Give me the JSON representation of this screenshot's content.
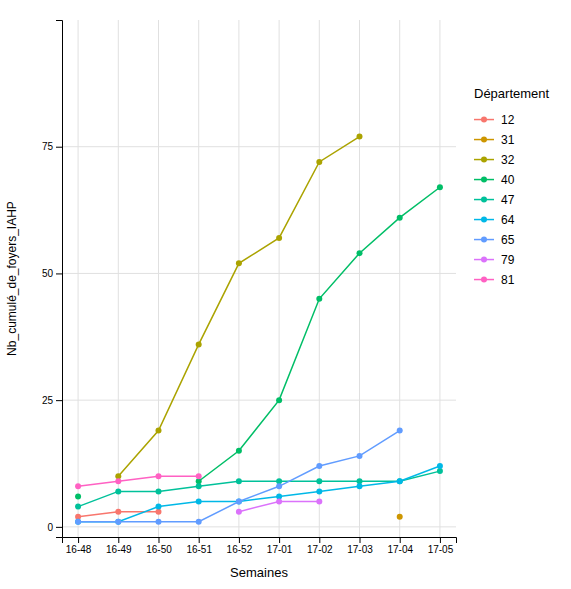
{
  "chart_data": {
    "type": "line",
    "xlabel": "Semaines",
    "ylabel": "Nb_cumulé_de_foyers_IAHP",
    "legend_title": "Département",
    "categories": [
      "16-48",
      "16-49",
      "16-50",
      "16-51",
      "16-52",
      "17-01",
      "17-02",
      "17-03",
      "17-04",
      "17-05"
    ],
    "series": [
      {
        "name": "12",
        "color": "#F8766D",
        "values": [
          2,
          3,
          3,
          null,
          null,
          null,
          null,
          null,
          null,
          null
        ]
      },
      {
        "name": "31",
        "color": "#CD9600",
        "values": [
          null,
          null,
          null,
          null,
          null,
          null,
          null,
          null,
          2,
          null
        ]
      },
      {
        "name": "32",
        "color": "#ABA300",
        "values": [
          null,
          10,
          19,
          36,
          52,
          57,
          72,
          77,
          null,
          null
        ]
      },
      {
        "name": "40",
        "color": "#00BE67",
        "values": [
          6,
          null,
          null,
          9,
          15,
          25,
          45,
          54,
          61,
          67
        ]
      },
      {
        "name": "47",
        "color": "#00C19A",
        "values": [
          4,
          7,
          7,
          8,
          9,
          9,
          9,
          9,
          9,
          11
        ]
      },
      {
        "name": "64",
        "color": "#00B8E7",
        "values": [
          1,
          1,
          4,
          5,
          5,
          6,
          7,
          8,
          9,
          12
        ]
      },
      {
        "name": "65",
        "color": "#619CFF",
        "values": [
          1,
          1,
          1,
          1,
          5,
          8,
          12,
          14,
          19,
          null
        ]
      },
      {
        "name": "79",
        "color": "#DB72FB",
        "values": [
          null,
          null,
          null,
          null,
          3,
          5,
          5,
          null,
          null,
          null
        ]
      },
      {
        "name": "81",
        "color": "#FF61C3",
        "values": [
          8,
          9,
          10,
          10,
          null,
          null,
          null,
          null,
          null,
          null
        ]
      }
    ],
    "ylim": [
      -2,
      100
    ],
    "yticks": [
      0,
      25,
      50,
      75
    ],
    "grid": true,
    "legend": "right",
    "marker": "circle"
  }
}
